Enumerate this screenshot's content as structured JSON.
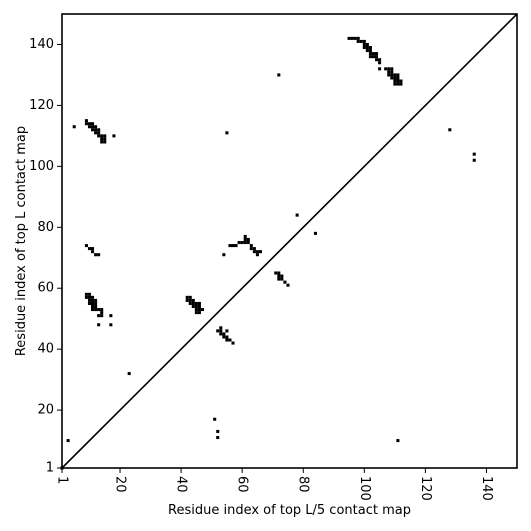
{
  "chart_data": {
    "type": "heatmap",
    "xlabel": "Residue index of top L/5 contact map",
    "ylabel": "Residue index of top L contact map",
    "xlim": [
      1,
      150
    ],
    "ylim": [
      1,
      150
    ],
    "x_ticks": [
      "1",
      "20",
      "40",
      "60",
      "80",
      "100",
      "120",
      "140"
    ],
    "y_ticks": [
      "1",
      "20",
      "40",
      "60",
      "80",
      "100",
      "120",
      "140"
    ],
    "diagonal": true,
    "grid": false,
    "point_color": "#000000",
    "points": [
      [
        1,
        1
      ],
      [
        3,
        10
      ],
      [
        5,
        113
      ],
      [
        9,
        115
      ],
      [
        9,
        114
      ],
      [
        10,
        114
      ],
      [
        11,
        114
      ],
      [
        10,
        113
      ],
      [
        11,
        113
      ],
      [
        12,
        113
      ],
      [
        11,
        112
      ],
      [
        12,
        112
      ],
      [
        13,
        112
      ],
      [
        12,
        111
      ],
      [
        13,
        111
      ],
      [
        13,
        110
      ],
      [
        14,
        110
      ],
      [
        15,
        110
      ],
      [
        14,
        109
      ],
      [
        15,
        109
      ],
      [
        14,
        108
      ],
      [
        15,
        108
      ],
      [
        18,
        110
      ],
      [
        9,
        74
      ],
      [
        10,
        73
      ],
      [
        11,
        73
      ],
      [
        11,
        72
      ],
      [
        12,
        71
      ],
      [
        13,
        71
      ],
      [
        9,
        58
      ],
      [
        10,
        58
      ],
      [
        9,
        57
      ],
      [
        10,
        57
      ],
      [
        11,
        57
      ],
      [
        10,
        56
      ],
      [
        11,
        56
      ],
      [
        12,
        56
      ],
      [
        10,
        55
      ],
      [
        11,
        55
      ],
      [
        12,
        55
      ],
      [
        11,
        54
      ],
      [
        12,
        54
      ],
      [
        11,
        53
      ],
      [
        12,
        53
      ],
      [
        13,
        53
      ],
      [
        14,
        53
      ],
      [
        14,
        52
      ],
      [
        14,
        51
      ],
      [
        13,
        51
      ],
      [
        17,
        51
      ],
      [
        13,
        48
      ],
      [
        17,
        48
      ],
      [
        23,
        32
      ],
      [
        42,
        57
      ],
      [
        43,
        57
      ],
      [
        42,
        56
      ],
      [
        43,
        56
      ],
      [
        44,
        56
      ],
      [
        43,
        55
      ],
      [
        44,
        55
      ],
      [
        45,
        55
      ],
      [
        46,
        55
      ],
      [
        44,
        54
      ],
      [
        45,
        54
      ],
      [
        46,
        54
      ],
      [
        45,
        53
      ],
      [
        46,
        53
      ],
      [
        47,
        53
      ],
      [
        45,
        52
      ],
      [
        46,
        52
      ],
      [
        51,
        17
      ],
      [
        52,
        13
      ],
      [
        52,
        11
      ],
      [
        52,
        46
      ],
      [
        53,
        47
      ],
      [
        53,
        46
      ],
      [
        53,
        45
      ],
      [
        54,
        45
      ],
      [
        55,
        46
      ],
      [
        54,
        44
      ],
      [
        55,
        44
      ],
      [
        55,
        43
      ],
      [
        56,
        43
      ],
      [
        57,
        42
      ],
      [
        54,
        71
      ],
      [
        55,
        111
      ],
      [
        56,
        74
      ],
      [
        57,
        74
      ],
      [
        58,
        74
      ],
      [
        59,
        75
      ],
      [
        60,
        75
      ],
      [
        61,
        75
      ],
      [
        61,
        77
      ],
      [
        61,
        76
      ],
      [
        62,
        76
      ],
      [
        62,
        75
      ],
      [
        63,
        74
      ],
      [
        63,
        73
      ],
      [
        64,
        73
      ],
      [
        64,
        72
      ],
      [
        65,
        72
      ],
      [
        65,
        71
      ],
      [
        66,
        72
      ],
      [
        71,
        65
      ],
      [
        72,
        65
      ],
      [
        72,
        64
      ],
      [
        73,
        64
      ],
      [
        72,
        63
      ],
      [
        73,
        63
      ],
      [
        74,
        62
      ],
      [
        75,
        61
      ],
      [
        72,
        130
      ],
      [
        78,
        84
      ],
      [
        84,
        78
      ],
      [
        95,
        142
      ],
      [
        96,
        142
      ],
      [
        97,
        142
      ],
      [
        98,
        142
      ],
      [
        98,
        141
      ],
      [
        99,
        141
      ],
      [
        100,
        141
      ],
      [
        100,
        140
      ],
      [
        101,
        140
      ],
      [
        100,
        139
      ],
      [
        101,
        139
      ],
      [
        102,
        139
      ],
      [
        101,
        138
      ],
      [
        102,
        138
      ],
      [
        102,
        137
      ],
      [
        103,
        137
      ],
      [
        104,
        137
      ],
      [
        102,
        136
      ],
      [
        103,
        136
      ],
      [
        104,
        136
      ],
      [
        104,
        135
      ],
      [
        105,
        135
      ],
      [
        105,
        134
      ],
      [
        105,
        132
      ],
      [
        107,
        132
      ],
      [
        108,
        132
      ],
      [
        109,
        132
      ],
      [
        108,
        131
      ],
      [
        109,
        131
      ],
      [
        108,
        130
      ],
      [
        109,
        130
      ],
      [
        110,
        130
      ],
      [
        111,
        130
      ],
      [
        109,
        129
      ],
      [
        110,
        129
      ],
      [
        111,
        129
      ],
      [
        110,
        128
      ],
      [
        111,
        128
      ],
      [
        112,
        128
      ],
      [
        110,
        127
      ],
      [
        111,
        127
      ],
      [
        112,
        127
      ],
      [
        111,
        10
      ],
      [
        128,
        112
      ],
      [
        136,
        104
      ],
      [
        136,
        102
      ]
    ]
  }
}
